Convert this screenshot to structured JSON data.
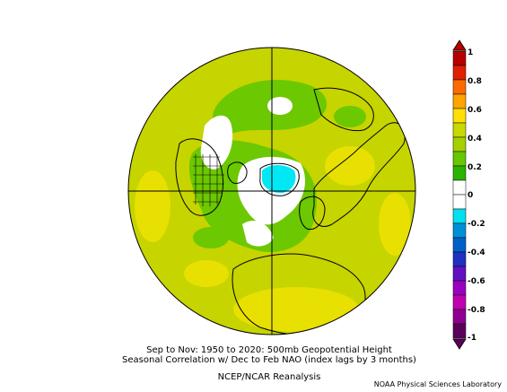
{
  "caption": {
    "line1": "Sep to Nov: 1950 to 2020: 500mb Geopotential Height",
    "line2": "Seasonal Correlation w/ Dec to Feb NAO (index lags by 3 months)",
    "line3": "NCEP/NCAR Reanalysis"
  },
  "credit": "NOAA Physical Sciences Laboratory",
  "colorbar": {
    "labels": [
      "1",
      "0.8",
      "0.6",
      "0.4",
      "0.2",
      "0",
      "-0.2",
      "-0.4",
      "-0.6",
      "-0.8",
      "-1"
    ],
    "colors": [
      "#b50000",
      "#e02000",
      "#ff6a00",
      "#ffa400",
      "#ffe000",
      "#c8d800",
      "#a6d000",
      "#66c800",
      "#2ab400",
      "#ffffff",
      "#ffffff",
      "#00e0f0",
      "#0090d8",
      "#0060c8",
      "#2030c0",
      "#6010c0",
      "#9a00c0",
      "#c000b0",
      "#900090",
      "#5a005a"
    ]
  },
  "map": {
    "background_color": "#c6d400",
    "high_color": "#e8e000",
    "green_color": "#6cc800",
    "white_color": "#ffffff",
    "cyan_color": "#00e8f4",
    "outline_color": "#000000"
  }
}
